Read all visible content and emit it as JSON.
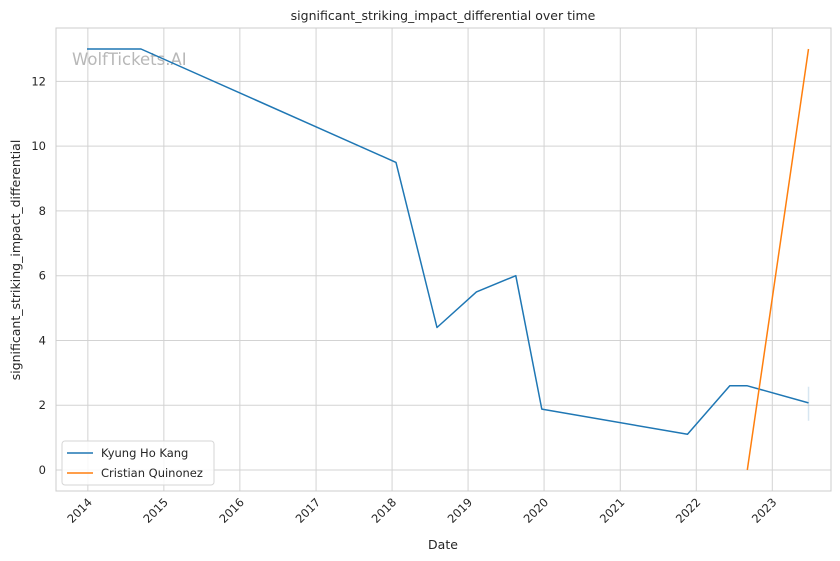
{
  "chart_data": {
    "type": "line",
    "title": "significant_striking_impact_differential over time",
    "xlabel": "Date",
    "ylabel": "significant_striking_impact_differential",
    "watermark": "WolfTickets.AI",
    "x_axis": "date",
    "xlim": [
      "2013-08-01",
      "2023-10-10"
    ],
    "ylim": [
      -0.65,
      13.65
    ],
    "x_ticks": [
      "2014",
      "2015",
      "2016",
      "2017",
      "2018",
      "2019",
      "2020",
      "2021",
      "2022",
      "2023"
    ],
    "y_ticks": [
      0,
      2,
      4,
      6,
      8,
      10,
      12
    ],
    "grid": true,
    "legend": "lower-left",
    "series": [
      {
        "name": "Kyung Ho Kang",
        "color": "#1f77b4",
        "points": [
          {
            "x": "2013-12-28",
            "y": 13.0
          },
          {
            "x": "2014-09-13",
            "y": 13.0
          },
          {
            "x": "2018-01-20",
            "y": 9.5
          },
          {
            "x": "2018-08-05",
            "y": 4.4
          },
          {
            "x": "2019-02-10",
            "y": 5.5
          },
          {
            "x": "2019-08-18",
            "y": 6.0
          },
          {
            "x": "2019-12-21",
            "y": 1.88
          },
          {
            "x": "2021-11-20",
            "y": 1.1
          },
          {
            "x": "2022-06-11",
            "y": 2.6
          },
          {
            "x": "2022-09-03",
            "y": 2.6
          },
          {
            "x": "2023-06-24",
            "y": 2.07
          }
        ]
      },
      {
        "name": "Cristian Quinonez",
        "color": "#ff7f0e",
        "points": [
          {
            "x": "2022-09-03",
            "y": 0.0
          },
          {
            "x": "2023-06-24",
            "y": 13.0
          }
        ]
      }
    ]
  }
}
